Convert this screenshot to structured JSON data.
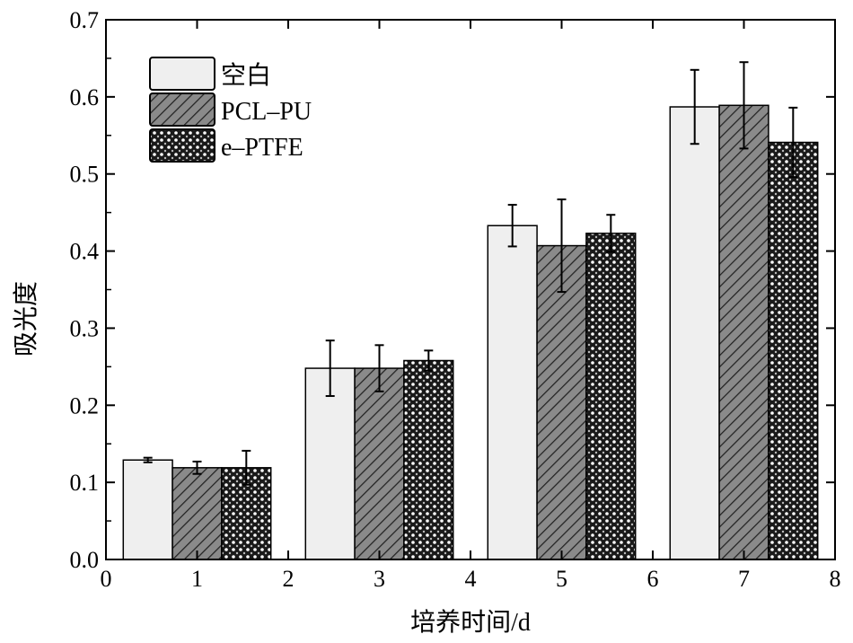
{
  "chart_data": {
    "type": "bar",
    "title": "",
    "xlabel": "培养时间/d",
    "ylabel": "吸光度",
    "xlim": [
      0,
      8
    ],
    "ylim": [
      0,
      0.7
    ],
    "x_ticks": [
      "0",
      "1",
      "2",
      "3",
      "4",
      "5",
      "6",
      "7",
      "8"
    ],
    "y_ticks": [
      "0.0",
      "0.1",
      "0.2",
      "0.3",
      "0.4",
      "0.5",
      "0.6",
      "0.7"
    ],
    "categories": [
      1,
      3,
      5,
      7
    ],
    "legend_position": "top-left",
    "grid": false,
    "series": [
      {
        "name": "空白",
        "pattern": "solid",
        "color": "#efefef",
        "values": [
          0.129,
          0.248,
          0.433,
          0.587
        ],
        "errors": [
          0.003,
          0.036,
          0.027,
          0.048
        ]
      },
      {
        "name": "PCL–PU",
        "pattern": "diagonal-hatch",
        "color": "#777777",
        "values": [
          0.119,
          0.248,
          0.407,
          0.589
        ],
        "errors": [
          0.008,
          0.03,
          0.06,
          0.056
        ]
      },
      {
        "name": "e–PTFE",
        "pattern": "crosshatch",
        "color": "#222222",
        "values": [
          0.119,
          0.258,
          0.423,
          0.541
        ],
        "errors": [
          0.022,
          0.013,
          0.024,
          0.045
        ]
      }
    ]
  }
}
